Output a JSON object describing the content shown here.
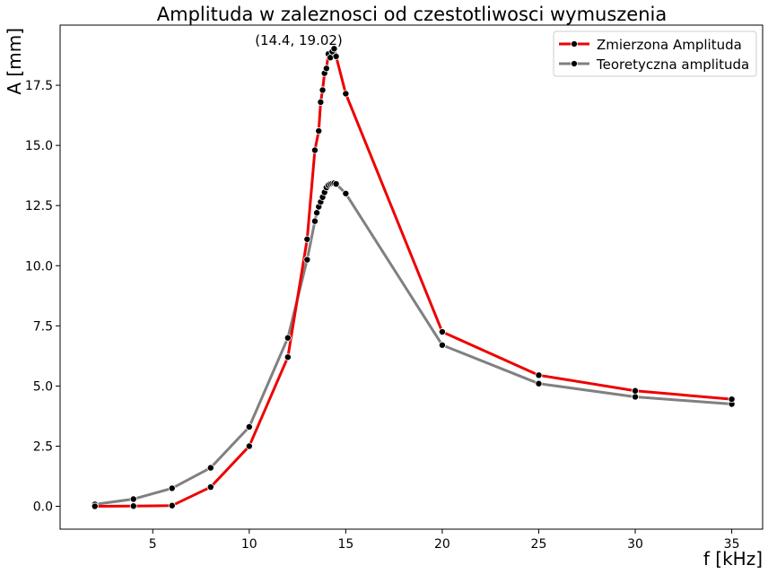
{
  "chart_data": {
    "type": "line",
    "title": "Amplituda w zaleznosci od czestotliwosci wymuszenia",
    "xlabel": "f [kHz]",
    "ylabel": "A [mm]",
    "xlim": [
      0.2,
      36.6
    ],
    "ylim": [
      -0.95,
      20.0
    ],
    "x_ticks": [
      5,
      10,
      15,
      20,
      25,
      30,
      35
    ],
    "y_ticks": [
      0.0,
      2.5,
      5.0,
      7.5,
      10.0,
      12.5,
      15.0,
      17.5
    ],
    "x_tick_labels": [
      "5",
      "10",
      "15",
      "20",
      "25",
      "30",
      "35"
    ],
    "y_tick_labels": [
      "0.0",
      "2.5",
      "5.0",
      "7.5",
      "10.0",
      "12.5",
      "15.0",
      "17.5"
    ],
    "grid": false,
    "legend_position": "top-right",
    "annotation": {
      "text": "(14.4, 19.02)",
      "x": 14.4,
      "y": 19.02
    },
    "series": [
      {
        "name": "Zmierzona Amplituda",
        "color": "#ee0000",
        "marker_color": "#000000",
        "x": [
          2,
          4,
          6,
          8,
          10,
          12,
          13,
          13.4,
          13.6,
          13.7,
          13.8,
          13.9,
          14.0,
          14.1,
          14.2,
          14.3,
          14.4,
          14.5,
          15,
          20,
          25,
          30,
          35
        ],
        "y": [
          0.0,
          0.01,
          0.03,
          0.8,
          2.5,
          6.2,
          11.1,
          14.8,
          15.6,
          16.8,
          17.3,
          18.0,
          18.2,
          18.8,
          18.65,
          18.9,
          19.02,
          18.7,
          17.15,
          7.25,
          5.45,
          4.8,
          4.45
        ]
      },
      {
        "name": "Teoretyczna amplituda",
        "color": "#808080",
        "marker_color": "#000000",
        "x": [
          2,
          4,
          6,
          8,
          10,
          12,
          13,
          13.4,
          13.5,
          13.6,
          13.7,
          13.8,
          13.9,
          14.0,
          14.1,
          14.2,
          14.3,
          14.4,
          14.5,
          15,
          20,
          25,
          30,
          35
        ],
        "y": [
          0.08,
          0.3,
          0.75,
          1.6,
          3.3,
          7.0,
          10.25,
          11.85,
          12.2,
          12.45,
          12.65,
          12.85,
          13.05,
          13.25,
          13.35,
          13.4,
          13.42,
          13.43,
          13.4,
          13.0,
          6.7,
          5.1,
          4.55,
          4.25
        ]
      }
    ]
  }
}
